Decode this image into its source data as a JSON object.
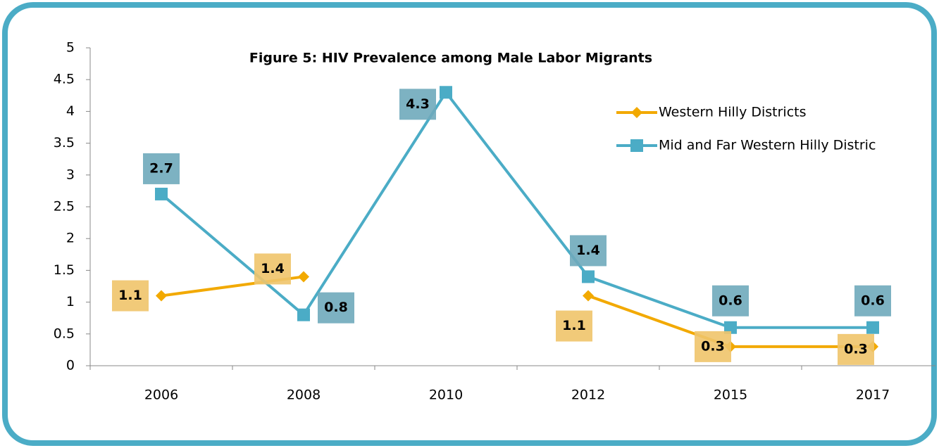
{
  "chart_data": {
    "type": "line",
    "title": "Figure 5: HIV Prevalence among Male Labor Migrants",
    "categories": [
      "2006",
      "2008",
      "2010",
      "2012",
      "2015",
      "2017"
    ],
    "series": [
      {
        "name": "Western Hilly Districts",
        "color": "#f2a900",
        "values": [
          1.1,
          1.4,
          null,
          1.1,
          0.3,
          0.3
        ]
      },
      {
        "name": "Mid and Far Western Hilly Distric",
        "color": "#4bacc6",
        "values": [
          2.7,
          0.8,
          4.3,
          1.4,
          0.6,
          0.6
        ]
      }
    ],
    "ylim": [
      0,
      5
    ],
    "yticks": [
      0,
      0.5,
      1,
      1.5,
      2,
      2.5,
      3,
      3.5,
      4,
      4.5,
      5
    ],
    "grid": false,
    "legend": "upper right"
  }
}
